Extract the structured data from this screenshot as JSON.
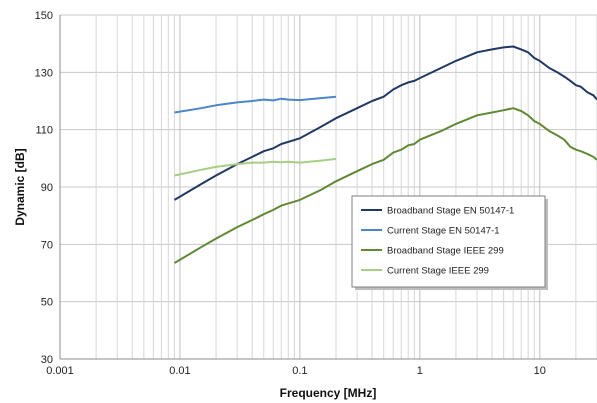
{
  "chart_data": {
    "type": "line",
    "xlabel": "Frequency [MHz]",
    "ylabel": "Dynamic [dB]",
    "xscale": "log",
    "xlim": [
      0.001,
      30
    ],
    "ylim": [
      30,
      150
    ],
    "x_ticks": [
      0.001,
      0.01,
      0.1,
      1,
      10
    ],
    "x_tick_labels": [
      "0.001",
      "0.01",
      "0.1",
      "1",
      "10"
    ],
    "y_ticks": [
      30,
      50,
      70,
      90,
      110,
      130,
      150
    ],
    "y_tick_labels": [
      "30",
      "50",
      "70",
      "90",
      "110",
      "130",
      "150"
    ],
    "grid": {
      "vertical_log_minor": true,
      "horizontal": true
    },
    "legend_position": "lower-right",
    "series": [
      {
        "name": "Broadband Stage EN 50147-1",
        "color": "#1f3864",
        "x": [
          0.009,
          0.015,
          0.02,
          0.03,
          0.04,
          0.05,
          0.06,
          0.07,
          0.1,
          0.15,
          0.2,
          0.3,
          0.4,
          0.5,
          0.6,
          0.7,
          0.8,
          0.9,
          1,
          1.5,
          2,
          3,
          4,
          5,
          6,
          7,
          8,
          9,
          10,
          12,
          14,
          16,
          18,
          20,
          22,
          25,
          28,
          30
        ],
        "y": [
          85.5,
          91,
          94,
          98,
          100.5,
          102.5,
          103.5,
          105,
          107,
          111,
          114,
          117.5,
          120,
          121.5,
          124,
          125.5,
          126.5,
          127,
          128,
          131.5,
          134,
          137,
          138,
          138.7,
          139,
          138,
          137,
          135,
          134,
          131.5,
          130,
          128.5,
          127,
          125.5,
          125,
          123,
          122,
          120.5
        ]
      },
      {
        "name": "Current Stage EN 50147-1",
        "color": "#4a86c8",
        "x": [
          0.009,
          0.015,
          0.02,
          0.03,
          0.04,
          0.05,
          0.06,
          0.07,
          0.08,
          0.1,
          0.15,
          0.2
        ],
        "y": [
          116,
          117.5,
          118.5,
          119.5,
          120,
          120.5,
          120.2,
          120.8,
          120.5,
          120.3,
          121,
          121.5
        ]
      },
      {
        "name": "Broadband Stage IEEE 299",
        "color": "#5e8a32",
        "x": [
          0.009,
          0.015,
          0.02,
          0.03,
          0.04,
          0.05,
          0.06,
          0.07,
          0.1,
          0.15,
          0.2,
          0.3,
          0.4,
          0.5,
          0.6,
          0.7,
          0.8,
          0.9,
          1,
          1.5,
          2,
          3,
          4,
          5,
          6,
          7,
          8,
          9,
          10,
          12,
          14,
          16,
          18,
          20,
          22,
          25,
          28,
          30
        ],
        "y": [
          63.5,
          69,
          72,
          76,
          78.5,
          80.5,
          82,
          83.5,
          85.5,
          89,
          92,
          95.5,
          98,
          99.5,
          102,
          103,
          104.5,
          105,
          106.5,
          109.5,
          112,
          115,
          116,
          116.8,
          117.5,
          116.5,
          115,
          113,
          112,
          109.5,
          108,
          106.5,
          104,
          103,
          102.5,
          101.5,
          100.5,
          99.5
        ]
      },
      {
        "name": "Current Stage IEEE 299",
        "color": "#a6cf84",
        "x": [
          0.009,
          0.015,
          0.02,
          0.03,
          0.04,
          0.05,
          0.06,
          0.07,
          0.08,
          0.1,
          0.15,
          0.2
        ],
        "y": [
          94,
          96,
          97,
          98,
          98.5,
          98.5,
          98.8,
          98.6,
          98.8,
          98.5,
          99.2,
          99.8
        ]
      }
    ]
  }
}
